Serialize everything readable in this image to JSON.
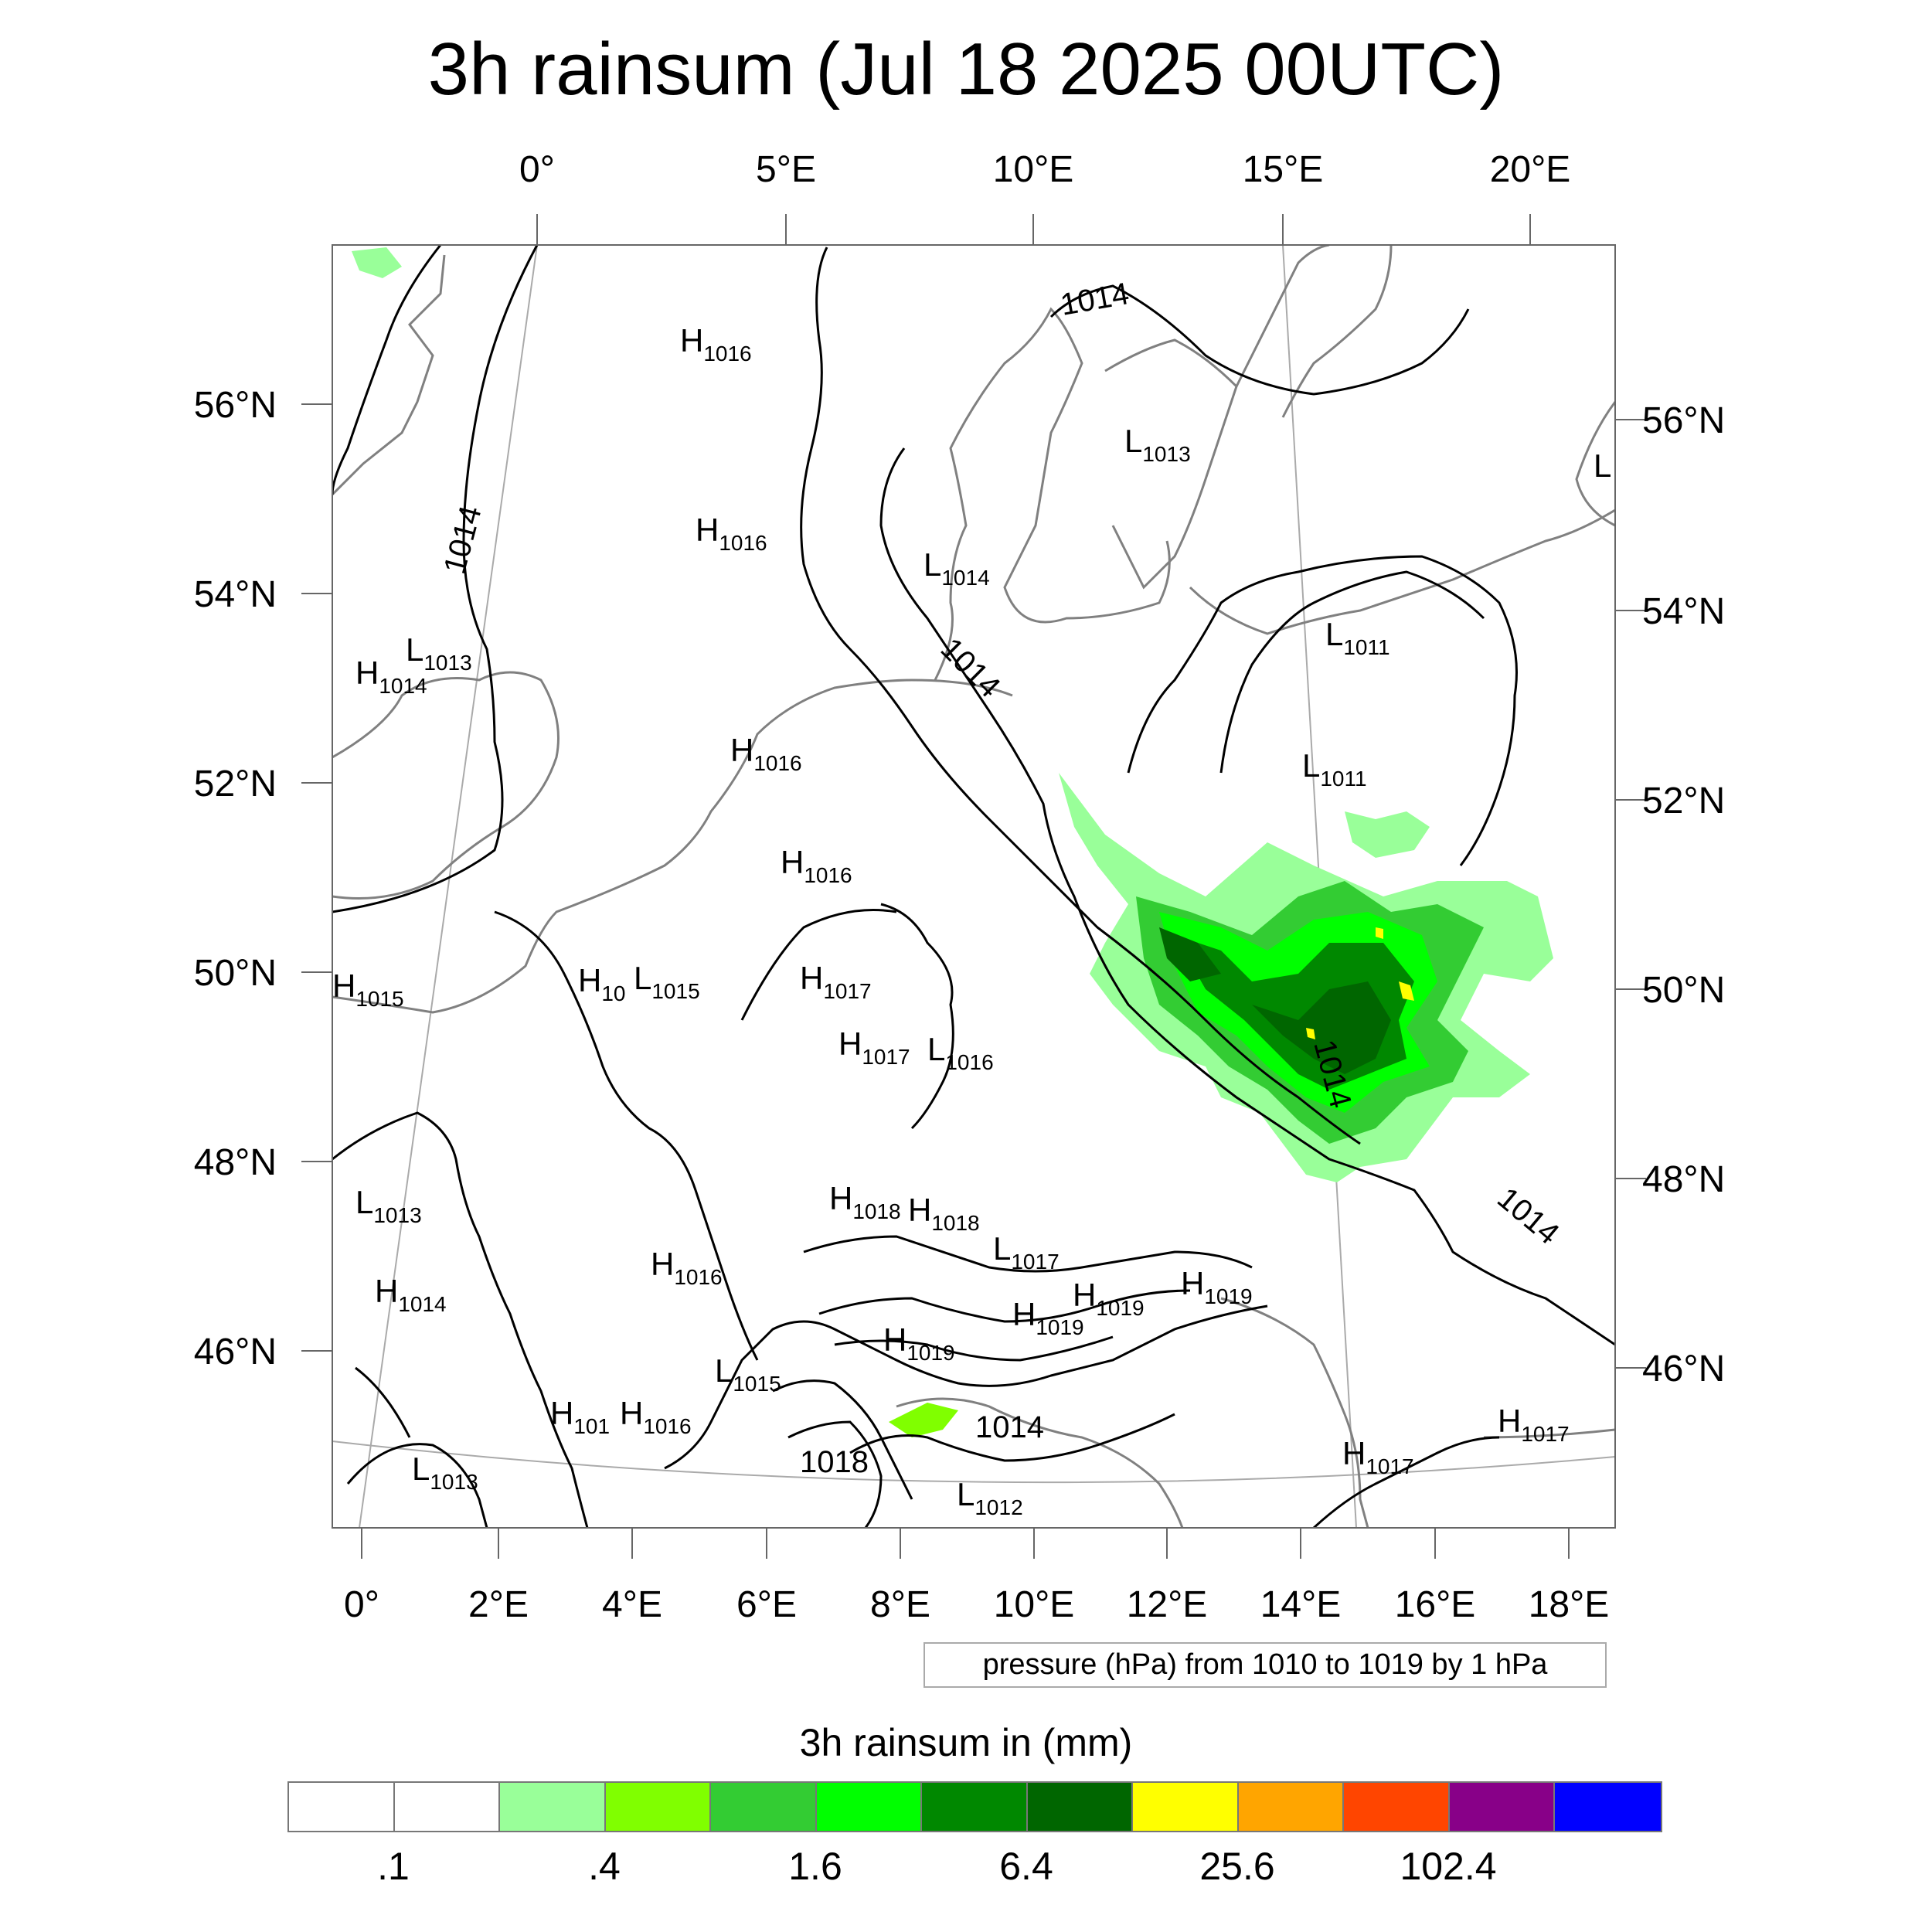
{
  "title": "3h rainsum (Jul 18 2025 00UTC)",
  "top_lon_ticks": [
    "0°",
    "5°E",
    "10°E",
    "15°E",
    "20°E"
  ],
  "bottom_lon_ticks": [
    "0°",
    "2°E",
    "4°E",
    "6°E",
    "8°E",
    "10°E",
    "12°E",
    "14°E",
    "16°E",
    "18°E"
  ],
  "left_lat_ticks": [
    "56°N",
    "54°N",
    "52°N",
    "50°N",
    "48°N",
    "46°N"
  ],
  "right_lat_ticks": [
    "56°N",
    "54°N",
    "52°N",
    "50°N",
    "48°N",
    "46°N"
  ],
  "contour_labels": [
    "1014",
    "1014",
    "1014",
    "1014",
    "1014",
    "1014",
    "1018"
  ],
  "pressure_centers": [
    {
      "type": "H",
      "value": "1016"
    },
    {
      "type": "H",
      "value": "1016"
    },
    {
      "type": "L",
      "value": "1013"
    },
    {
      "type": "L",
      "value": "1014"
    },
    {
      "type": "L",
      "value": "1011"
    },
    {
      "type": "L",
      "value": "1011"
    },
    {
      "type": "L",
      "value": "1013"
    },
    {
      "type": "H",
      "value": "1014"
    },
    {
      "type": "H",
      "value": "1016"
    },
    {
      "type": "H",
      "value": "1016"
    },
    {
      "type": "H",
      "value": "1015"
    },
    {
      "type": "H",
      "value": "10"
    },
    {
      "type": "L",
      "value": "1015"
    },
    {
      "type": "H",
      "value": "1017"
    },
    {
      "type": "H",
      "value": "1017"
    },
    {
      "type": "L",
      "value": "1016"
    },
    {
      "type": "L",
      "value": "1013"
    },
    {
      "type": "H",
      "value": "1014"
    },
    {
      "type": "H",
      "value": "1018"
    },
    {
      "type": "H",
      "value": "1018"
    },
    {
      "type": "L",
      "value": "1017"
    },
    {
      "type": "H",
      "value": "1016"
    },
    {
      "type": "H",
      "value": "1019"
    },
    {
      "type": "H",
      "value": "1019"
    },
    {
      "type": "H",
      "value": "1019"
    },
    {
      "type": "H",
      "value": "1019"
    },
    {
      "type": "L",
      "value": "1015"
    },
    {
      "type": "H",
      "value": "101"
    },
    {
      "type": "H",
      "value": "1016"
    },
    {
      "type": "L",
      "value": "1013"
    },
    {
      "type": "L",
      "value": "1012"
    },
    {
      "type": "H",
      "value": "1017"
    },
    {
      "type": "H",
      "value": "1017"
    },
    {
      "type": "L",
      "value": ""
    }
  ],
  "info_box": "pressure (hPa) from 1010 to 1019 by 1 hPa",
  "legend": {
    "title": "3h rainsum in (mm)",
    "colors": [
      "#ffffff",
      "#ffffff",
      "#99ff99",
      "#80ff00",
      "#33cc33",
      "#00ff00",
      "#008800",
      "#006600",
      "#ffff00",
      "#ffa500",
      "#ff4500",
      "#880088",
      "#0000ff"
    ],
    "labels": [
      ".1",
      ".4",
      "1.6",
      "6.4",
      "25.6",
      "102.4"
    ]
  },
  "colors": {
    "coast": "#808080",
    "contour": "#000000",
    "grid": "#aaaaaa",
    "rain_light": "#99ff99",
    "rain_mid": "#33cc33",
    "rain_bright": "#00ff00",
    "rain_dark": "#008800",
    "rain_darkest": "#006600",
    "rain_peak": "#ffff00"
  }
}
